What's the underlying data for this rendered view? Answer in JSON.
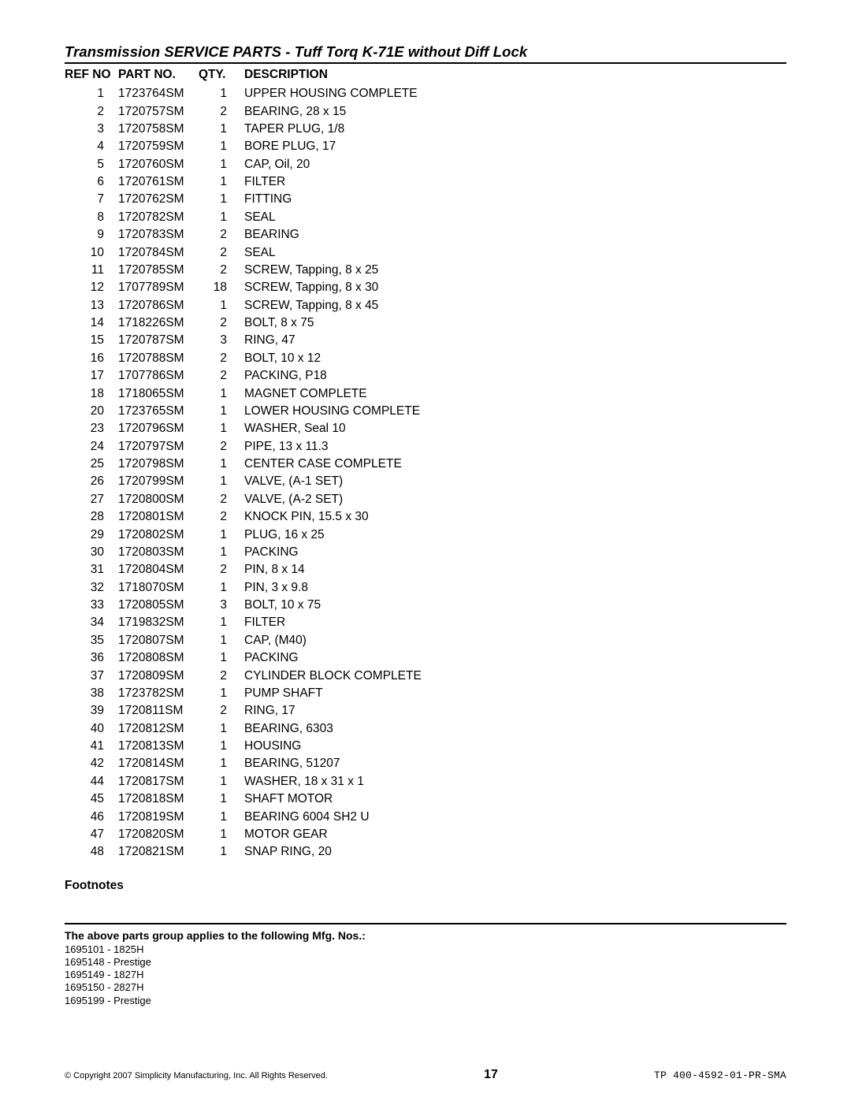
{
  "title": "Transmission SERVICE PARTS - Tuff Torq K-71E without Diff Lock",
  "columns": {
    "ref": "REF NO",
    "part": "PART NO.",
    "qty": "QTY.",
    "desc": "DESCRIPTION"
  },
  "rows": [
    {
      "ref": "1",
      "part": "1723764SM",
      "qty": "1",
      "desc": "UPPER HOUSING COMPLETE"
    },
    {
      "ref": "2",
      "part": "1720757SM",
      "qty": "2",
      "desc": "BEARING, 28 x 15"
    },
    {
      "ref": "3",
      "part": "1720758SM",
      "qty": "1",
      "desc": "TAPER PLUG, 1/8"
    },
    {
      "ref": "4",
      "part": "1720759SM",
      "qty": "1",
      "desc": "BORE PLUG, 17"
    },
    {
      "ref": "5",
      "part": "1720760SM",
      "qty": "1",
      "desc": "CAP, Oil, 20"
    },
    {
      "ref": "6",
      "part": "1720761SM",
      "qty": "1",
      "desc": "FILTER"
    },
    {
      "ref": "7",
      "part": "1720762SM",
      "qty": "1",
      "desc": "FITTING"
    },
    {
      "ref": "8",
      "part": "1720782SM",
      "qty": "1",
      "desc": "SEAL"
    },
    {
      "ref": "9",
      "part": "1720783SM",
      "qty": "2",
      "desc": "BEARING"
    },
    {
      "ref": "10",
      "part": "1720784SM",
      "qty": "2",
      "desc": "SEAL"
    },
    {
      "ref": "11",
      "part": "1720785SM",
      "qty": "2",
      "desc": "SCREW, Tapping, 8 x 25"
    },
    {
      "ref": "12",
      "part": "1707789SM",
      "qty": "18",
      "desc": "SCREW, Tapping, 8 x 30"
    },
    {
      "ref": "13",
      "part": "1720786SM",
      "qty": "1",
      "desc": "SCREW, Tapping, 8 x 45"
    },
    {
      "ref": "14",
      "part": "1718226SM",
      "qty": "2",
      "desc": "BOLT, 8  x  75"
    },
    {
      "ref": "15",
      "part": "1720787SM",
      "qty": "3",
      "desc": "RING, 47"
    },
    {
      "ref": "16",
      "part": "1720788SM",
      "qty": "2",
      "desc": "BOLT, 10 x 12"
    },
    {
      "ref": "17",
      "part": "1707786SM",
      "qty": "2",
      "desc": "PACKING, P18"
    },
    {
      "ref": "18",
      "part": "1718065SM",
      "qty": "1",
      "desc": "MAGNET COMPLETE"
    },
    {
      "ref": "20",
      "part": "1723765SM",
      "qty": "1",
      "desc": "LOWER HOUSING COMPLETE"
    },
    {
      "ref": "23",
      "part": "1720796SM",
      "qty": "1",
      "desc": "WASHER, Seal 10"
    },
    {
      "ref": "24",
      "part": "1720797SM",
      "qty": "2",
      "desc": "PIPE, 13 x 11.3"
    },
    {
      "ref": "25",
      "part": "1720798SM",
      "qty": "1",
      "desc": "CENTER CASE COMPLETE"
    },
    {
      "ref": "26",
      "part": "1720799SM",
      "qty": "1",
      "desc": "VALVE, (A-1 SET)"
    },
    {
      "ref": "27",
      "part": "1720800SM",
      "qty": "2",
      "desc": "VALVE, (A-2 SET)"
    },
    {
      "ref": "28",
      "part": "1720801SM",
      "qty": "2",
      "desc": "KNOCK PIN, 15.5 x 30"
    },
    {
      "ref": "29",
      "part": "1720802SM",
      "qty": "1",
      "desc": "PLUG, 16 x 25"
    },
    {
      "ref": "30",
      "part": "1720803SM",
      "qty": "1",
      "desc": "PACKING"
    },
    {
      "ref": "31",
      "part": "1720804SM",
      "qty": "2",
      "desc": "PIN, 8 x 14"
    },
    {
      "ref": "32",
      "part": "1718070SM",
      "qty": "1",
      "desc": "PIN, 3 x 9.8"
    },
    {
      "ref": "33",
      "part": "1720805SM",
      "qty": "3",
      "desc": "BOLT, 10 x 75"
    },
    {
      "ref": "34",
      "part": "1719832SM",
      "qty": "1",
      "desc": "FILTER"
    },
    {
      "ref": "35",
      "part": "1720807SM",
      "qty": "1",
      "desc": "CAP, (M40)"
    },
    {
      "ref": "36",
      "part": "1720808SM",
      "qty": "1",
      "desc": "PACKING"
    },
    {
      "ref": "37",
      "part": "1720809SM",
      "qty": "2",
      "desc": "CYLINDER BLOCK COMPLETE"
    },
    {
      "ref": "38",
      "part": "1723782SM",
      "qty": "1",
      "desc": "PUMP SHAFT"
    },
    {
      "ref": "39",
      "part": "1720811SM",
      "qty": "2",
      "desc": "RING, 17"
    },
    {
      "ref": "40",
      "part": "1720812SM",
      "qty": "1",
      "desc": "BEARING, 6303"
    },
    {
      "ref": "41",
      "part": "1720813SM",
      "qty": "1",
      "desc": "HOUSING"
    },
    {
      "ref": "42",
      "part": "1720814SM",
      "qty": "1",
      "desc": "BEARING, 51207"
    },
    {
      "ref": "44",
      "part": "1720817SM",
      "qty": "1",
      "desc": "WASHER, 18 x 31 x 1"
    },
    {
      "ref": "45",
      "part": "1720818SM",
      "qty": "1",
      "desc": "SHAFT MOTOR"
    },
    {
      "ref": "46",
      "part": "1720819SM",
      "qty": "1",
      "desc": "BEARING 6004 SH2 U"
    },
    {
      "ref": "47",
      "part": "1720820SM",
      "qty": "1",
      "desc": "MOTOR GEAR"
    },
    {
      "ref": "48",
      "part": "1720821SM",
      "qty": "1",
      "desc": "SNAP RING, 20"
    }
  ],
  "footnotes_label": "Footnotes",
  "applies_label": "The above parts group applies to the following Mfg. Nos.:",
  "mfg_nos": [
    "1695101 - 1825H",
    "1695148 - Prestige",
    "1695149 - 1827H",
    "1695150 - 2827H",
    "1695199 - Prestige"
  ],
  "footer": {
    "copyright": "© Copyright 2007 Simplicity Manufacturing, Inc. All Rights Reserved.",
    "page": "17",
    "docno": "TP 400-4592-01-PR-SMA"
  }
}
